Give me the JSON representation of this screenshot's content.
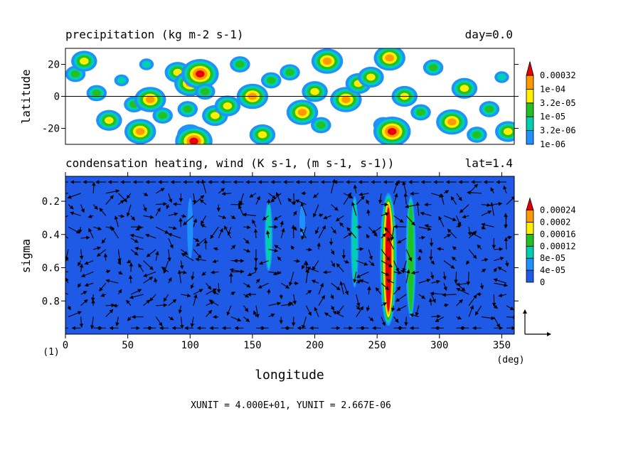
{
  "chart_data": [
    {
      "type": "heatmap",
      "title": "precipitation (kg m-2 s-1)",
      "title_right": "day=0.0",
      "ylabel": "latitude",
      "xlim": [
        0,
        360
      ],
      "ylim": [
        -30,
        30
      ],
      "yticks": [
        20,
        0,
        -20
      ],
      "ytick_labels": [
        "20",
        "0",
        "-20"
      ],
      "legend_levels": [
        "1e-06",
        "3.2e-06",
        "1e-05",
        "3.2e-05",
        "1e-04",
        "0.00032"
      ],
      "legend_colors": [
        "#1e90ff",
        "#00d0b0",
        "#22c022",
        "#ffee00",
        "#ff9900",
        "#e80000"
      ],
      "equator_line": 0,
      "blobs": [
        {
          "x": 8,
          "y": 14,
          "level": 2
        },
        {
          "x": 15,
          "y": 22,
          "level": 3
        },
        {
          "x": 25,
          "y": 2,
          "level": 2
        },
        {
          "x": 35,
          "y": -15,
          "level": 3
        },
        {
          "x": 45,
          "y": 10,
          "level": 1
        },
        {
          "x": 55,
          "y": -5,
          "level": 2
        },
        {
          "x": 60,
          "y": -22,
          "level": 4
        },
        {
          "x": 65,
          "y": 20,
          "level": 1
        },
        {
          "x": 68,
          "y": -2,
          "level": 4
        },
        {
          "x": 78,
          "y": -12,
          "level": 2
        },
        {
          "x": 90,
          "y": 15,
          "level": 3
        },
        {
          "x": 98,
          "y": -8,
          "level": 2
        },
        {
          "x": 100,
          "y": 8,
          "level": 4
        },
        {
          "x": 100,
          "y": -24,
          "level": 3
        },
        {
          "x": 103,
          "y": -28,
          "level": 5
        },
        {
          "x": 108,
          "y": 14,
          "level": 5
        },
        {
          "x": 112,
          "y": 3,
          "level": 2
        },
        {
          "x": 120,
          "y": -12,
          "level": 3
        },
        {
          "x": 130,
          "y": -6,
          "level": 3
        },
        {
          "x": 140,
          "y": 20,
          "level": 2
        },
        {
          "x": 150,
          "y": 0,
          "level": 4
        },
        {
          "x": 158,
          "y": -24,
          "level": 3
        },
        {
          "x": 165,
          "y": 10,
          "level": 2
        },
        {
          "x": 180,
          "y": 15,
          "level": 2
        },
        {
          "x": 190,
          "y": -10,
          "level": 4
        },
        {
          "x": 200,
          "y": 3,
          "level": 3
        },
        {
          "x": 205,
          "y": -18,
          "level": 2
        },
        {
          "x": 210,
          "y": 22,
          "level": 4
        },
        {
          "x": 225,
          "y": -2,
          "level": 4
        },
        {
          "x": 235,
          "y": 8,
          "level": 3
        },
        {
          "x": 245,
          "y": 12,
          "level": 3
        },
        {
          "x": 255,
          "y": -18,
          "level": 2
        },
        {
          "x": 260,
          "y": 24,
          "level": 4
        },
        {
          "x": 262,
          "y": -22,
          "level": 5
        },
        {
          "x": 272,
          "y": 0,
          "level": 3
        },
        {
          "x": 285,
          "y": -10,
          "level": 2
        },
        {
          "x": 295,
          "y": 18,
          "level": 2
        },
        {
          "x": 310,
          "y": -16,
          "level": 4
        },
        {
          "x": 320,
          "y": 5,
          "level": 3
        },
        {
          "x": 330,
          "y": -24,
          "level": 2
        },
        {
          "x": 340,
          "y": -8,
          "level": 2
        },
        {
          "x": 350,
          "y": 12,
          "level": 1
        },
        {
          "x": 355,
          "y": -22,
          "level": 3
        }
      ]
    },
    {
      "type": "heatmap",
      "title": "condensation heating, wind (K s-1, (m s-1, s-1))",
      "title_right": "lat=1.4",
      "xlabel": "longitude",
      "xunit": "(deg)",
      "ylabel": "sigma",
      "panel_number": "(1)",
      "xlim": [
        0,
        360
      ],
      "ylim": [
        1.0,
        0.05
      ],
      "xticks": [
        0,
        50,
        100,
        150,
        200,
        250,
        300,
        350
      ],
      "xtick_labels": [
        "0",
        "50",
        "100",
        "150",
        "200",
        "250",
        "300",
        "350"
      ],
      "yticks": [
        0.2,
        0.4,
        0.6,
        0.8
      ],
      "ytick_labels": [
        "0.2",
        "0.4",
        "0.6",
        "0.8"
      ],
      "legend_levels": [
        "0",
        "4e-05",
        "8e-05",
        "0.00012",
        "0.00016",
        "0.0002",
        "0.00024"
      ],
      "legend_colors": [
        "#1e5ae6",
        "#1e90ff",
        "#00d0b0",
        "#22c022",
        "#ffee00",
        "#ff9900",
        "#e80000"
      ],
      "background_color": "#1e5ae6",
      "heating_columns": [
        {
          "x": 100,
          "top": 0.18,
          "bottom": 0.55,
          "level": 1
        },
        {
          "x": 163,
          "top": 0.2,
          "bottom": 0.62,
          "level": 2
        },
        {
          "x": 190,
          "top": 0.22,
          "bottom": 0.42,
          "level": 1
        },
        {
          "x": 232,
          "top": 0.17,
          "bottom": 0.72,
          "level": 2
        },
        {
          "x": 259,
          "top": 0.15,
          "bottom": 0.95,
          "level": 6
        },
        {
          "x": 277,
          "top": 0.17,
          "bottom": 0.9,
          "level": 3
        }
      ],
      "vector_reference": {
        "xunit_text": "XUNIT = 4.000E+01, YUNIT = 2.667E-06"
      }
    }
  ]
}
